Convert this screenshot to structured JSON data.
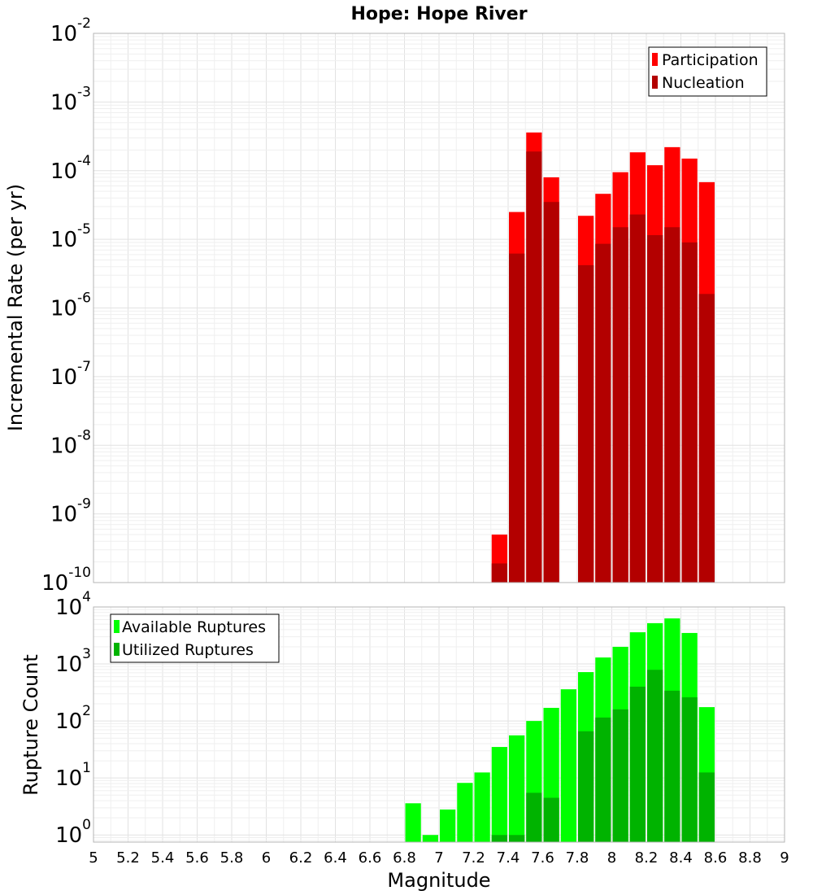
{
  "chart_data": [
    {
      "type": "bar",
      "title": "Hope: Hope River",
      "ylabel": "Incremental Rate (per yr)",
      "xlabel": "",
      "xlim": [
        5,
        9
      ],
      "ylim": [
        1e-10,
        0.01
      ],
      "yscale": "log",
      "grid": true,
      "legend_position": "top-right",
      "bin_width": 0.1,
      "y_tick_exponents": [
        "-2",
        "-3",
        "-4",
        "-5",
        "-6",
        "-7",
        "-8",
        "-9",
        "-10"
      ],
      "x": [
        7.35,
        7.45,
        7.55,
        7.65,
        7.85,
        7.95,
        8.05,
        8.15,
        8.25,
        8.35,
        8.45,
        8.55
      ],
      "series": [
        {
          "name": "Participation",
          "color": "#ff0000",
          "values": [
            5e-10,
            2.5e-05,
            0.00036,
            8e-05,
            2.2e-05,
            4.6e-05,
            9.5e-05,
            0.000185,
            0.00012,
            0.00022,
            0.00015,
            6.8e-05
          ]
        },
        {
          "name": "Nucleation",
          "color": "#b30000",
          "values": [
            1.9e-10,
            6.2e-06,
            0.00019,
            3.5e-05,
            4.2e-06,
            8.6e-06,
            1.5e-05,
            2.3e-05,
            1.15e-05,
            1.5e-05,
            9e-06,
            1.6e-06
          ]
        }
      ]
    },
    {
      "type": "bar",
      "title": "",
      "ylabel": "Rupture Count",
      "xlabel": "Magnitude",
      "xlim": [
        5,
        9
      ],
      "ylim": [
        0.75,
        10000
      ],
      "yscale": "log",
      "grid": true,
      "legend_position": "top-left",
      "bin_width": 0.1,
      "y_tick_exponents": [
        "4",
        "3",
        "2",
        "1",
        "0"
      ],
      "x_ticks": [
        "5",
        "5.2",
        "5.4",
        "5.6",
        "5.8",
        "6",
        "6.2",
        "6.4",
        "6.6",
        "6.8",
        "7",
        "7.2",
        "7.4",
        "7.6",
        "7.8",
        "8",
        "8.2",
        "8.4",
        "8.6",
        "8.8",
        "9"
      ],
      "x": [
        6.85,
        6.95,
        7.05,
        7.15,
        7.25,
        7.35,
        7.45,
        7.55,
        7.65,
        7.75,
        7.85,
        7.95,
        8.05,
        8.15,
        8.25,
        8.35,
        8.45,
        8.55
      ],
      "series": [
        {
          "name": "Available Ruptures",
          "color": "#00ff00",
          "values": [
            3.6,
            1,
            2.8,
            8.2,
            12.5,
            35,
            56,
            100,
            170,
            360,
            720,
            1300,
            2000,
            3600,
            5200,
            6300,
            3500,
            175
          ]
        },
        {
          "name": "Utilized Ruptures",
          "color": "#00b300",
          "values": [
            0,
            0,
            0,
            0,
            0,
            1,
            1,
            5.5,
            4.5,
            0,
            66,
            115,
            160,
            400,
            790,
            340,
            260,
            12.5
          ]
        }
      ]
    }
  ]
}
